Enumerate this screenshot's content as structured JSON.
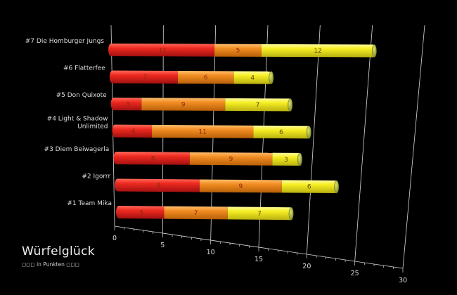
{
  "title": "Würfelglück",
  "subtitle": {
    "prefix_glyphs": "◻◻◻",
    "text": "in Punkten",
    "suffix_glyphs": "◻◻◻"
  },
  "chart_data": {
    "type": "bar",
    "orientation": "horizontal",
    "stacked": true,
    "three_d": true,
    "categories": [
      "#1 Team Mika",
      "#2 Igorrr",
      "#3 Diem Beiwagerla",
      "#4 Light & Shadow Unlimited",
      "#5 Don Quixote",
      "#6 Flatterfee",
      "#7 Die Homburger Jungs"
    ],
    "series": [
      {
        "values": [
          5,
          9,
          8,
          4,
          3,
          7,
          11
        ],
        "color": "#e02020"
      },
      {
        "values": [
          7,
          9,
          9,
          11,
          9,
          6,
          5
        ],
        "color": "#f08a1c"
      },
      {
        "values": [
          7,
          6,
          3,
          6,
          7,
          4,
          12
        ],
        "color": "#f4ec1e"
      }
    ],
    "x_ticks": [
      0,
      5,
      10,
      15,
      20,
      25,
      30
    ],
    "xlim": [
      0,
      30
    ],
    "grid": true,
    "legend": "none",
    "background": "#000000"
  }
}
